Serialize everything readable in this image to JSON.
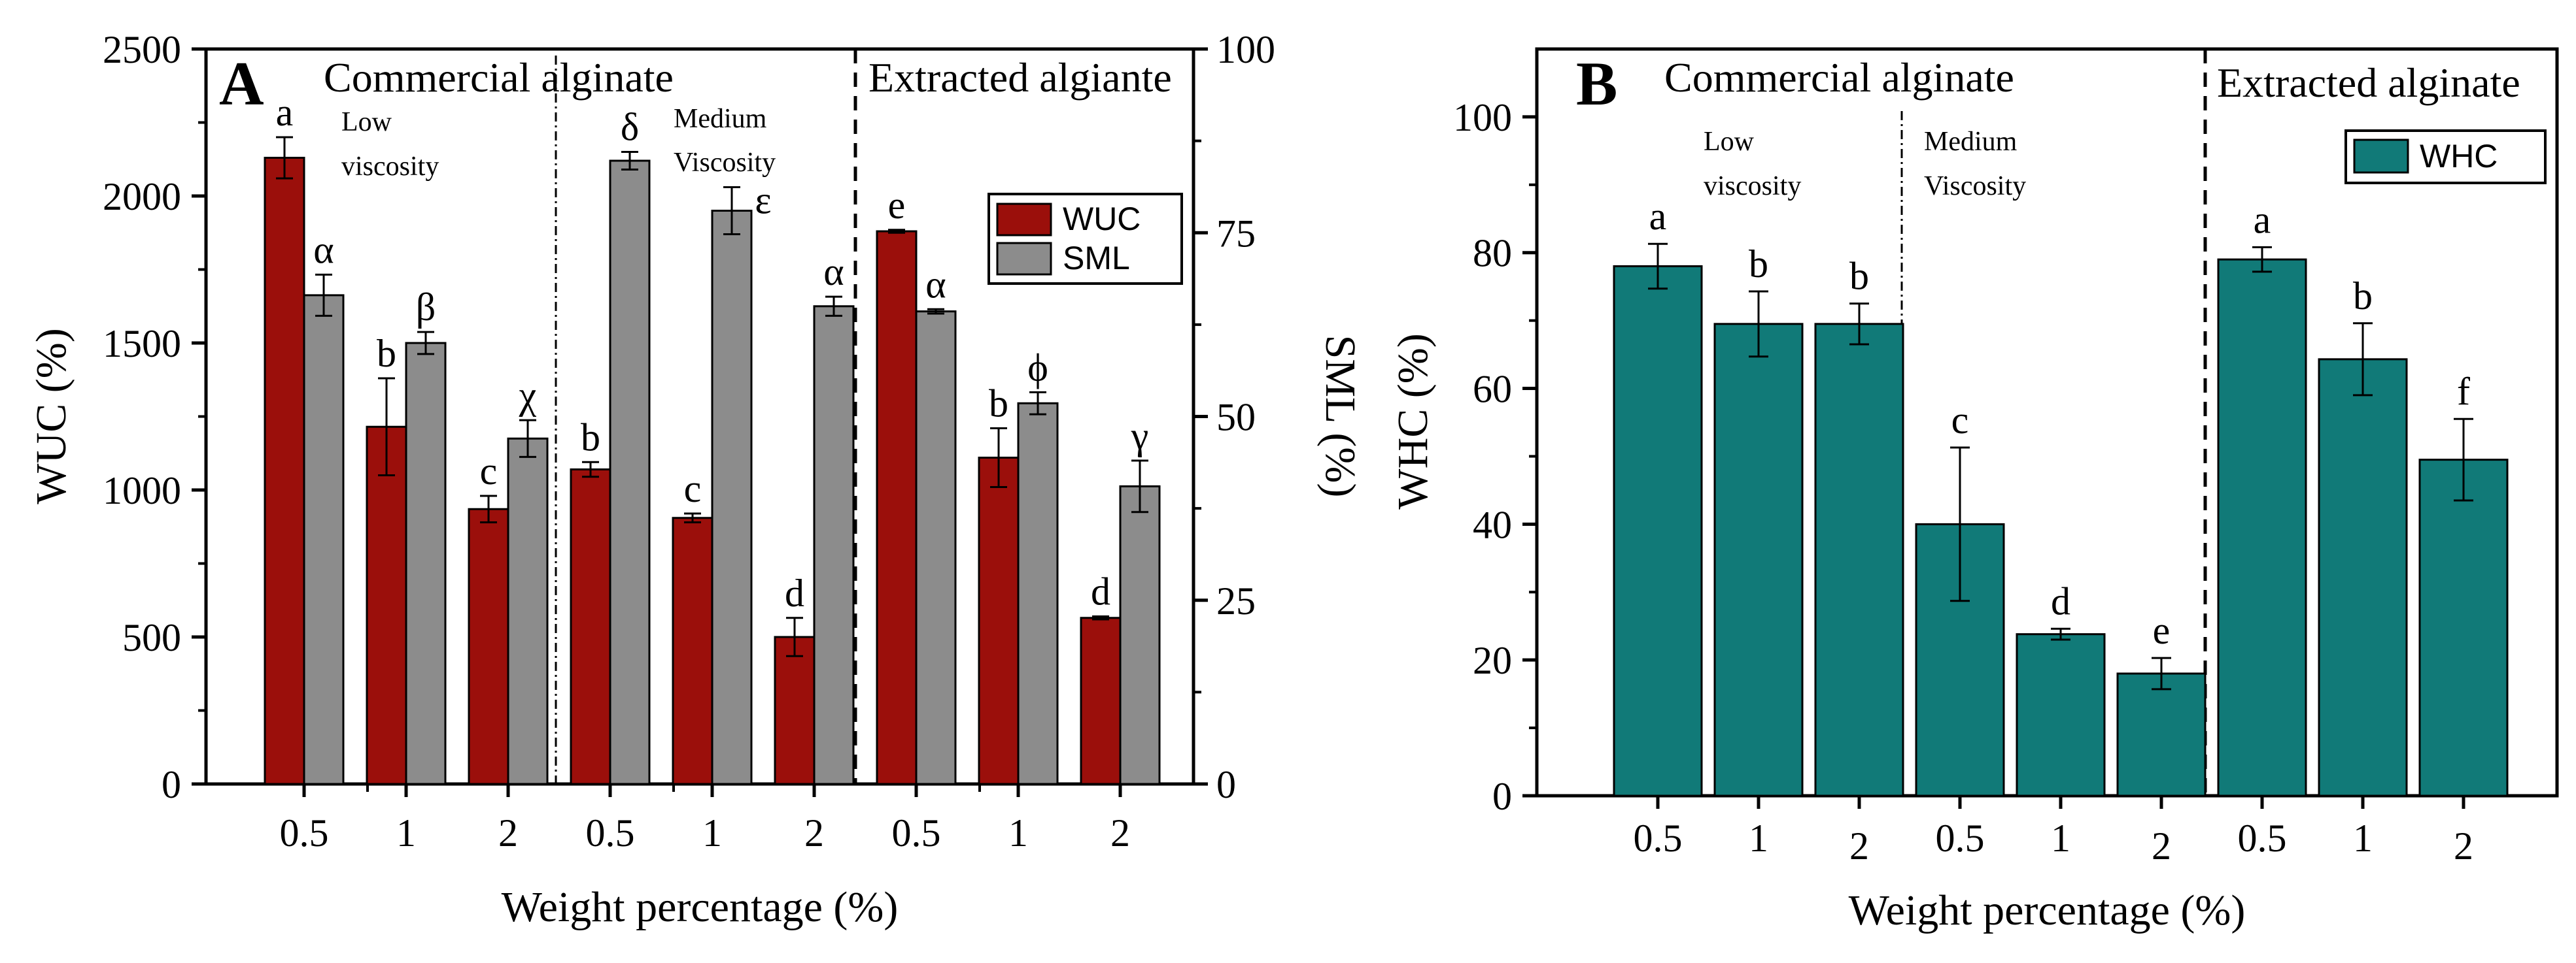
{
  "chart_data": [
    {
      "panel_label": "A",
      "type": "bar",
      "xlabel": "Weight percentage (%)",
      "ylabel_left": "WUC (%)",
      "ylabel_right": "SML (%)",
      "ylim_left": [
        0,
        2500
      ],
      "ylim_right": [
        0,
        100
      ],
      "yticks_left": [
        0,
        500,
        1000,
        1500,
        2000,
        2500
      ],
      "yticks_right": [
        0,
        25,
        50,
        75,
        100
      ],
      "categories": [
        "0.5",
        "1",
        "2",
        "0.5",
        "1",
        "2",
        "0.5",
        "1",
        "2"
      ],
      "group_labels": {
        "commercial": "Commercial alginate",
        "extracted": "Extracted algiante",
        "low_1": "Low",
        "low_2": "viscosity",
        "medium_1": "Medium",
        "medium_2": "Viscosity"
      },
      "series": [
        {
          "name": "WUC",
          "axis": "left",
          "color": "#9B0F0B",
          "values": [
            2130,
            1215,
            935,
            1070,
            905,
            500,
            1880,
            1110,
            565
          ],
          "errors": [
            70,
            165,
            45,
            25,
            15,
            65,
            5,
            100,
            5
          ],
          "letters": [
            "a",
            "b",
            "c",
            "b",
            "c",
            "d",
            "e",
            "b",
            "d"
          ]
        },
        {
          "name": "SML",
          "axis": "right",
          "color": "#8C8C8C",
          "values": [
            66.5,
            60,
            47,
            84.8,
            78,
            65,
            64.3,
            51.8,
            40.5
          ],
          "errors": [
            2.8,
            1.5,
            2.5,
            1.2,
            3.2,
            1.3,
            0.3,
            1.5,
            3.5
          ],
          "letters": [
            "α",
            "β",
            "χ",
            "δ",
            "ε",
            "α",
            "α",
            "ϕ",
            "γ"
          ]
        }
      ]
    },
    {
      "panel_label": "B",
      "type": "bar",
      "xlabel": "Weight percentage (%)",
      "ylabel": "WHC (%)",
      "ylim": [
        0,
        110
      ],
      "yticks": [
        0,
        20,
        40,
        60,
        80,
        100
      ],
      "categories": [
        "0.5",
        "1",
        "2",
        "0.5",
        "1",
        "2",
        "0.5",
        "1",
        "2"
      ],
      "group_labels": {
        "commercial": "Commercial alginate",
        "extracted": "Extracted alginate",
        "low_1": "Low",
        "low_2": "viscosity",
        "medium_1": "Medium",
        "medium_2": "Viscosity"
      },
      "series": [
        {
          "name": "WHC",
          "color": "#117A78",
          "values": [
            78,
            69.5,
            69.5,
            40,
            23.8,
            18,
            79,
            64.3,
            49.5
          ],
          "errors": [
            3.3,
            4.8,
            3.0,
            11.3,
            0.8,
            2.3,
            1.8,
            5.3,
            6.0
          ],
          "letters": [
            "a",
            "b",
            "b",
            "c",
            "d",
            "e",
            "a",
            "b",
            "f"
          ]
        }
      ]
    }
  ]
}
